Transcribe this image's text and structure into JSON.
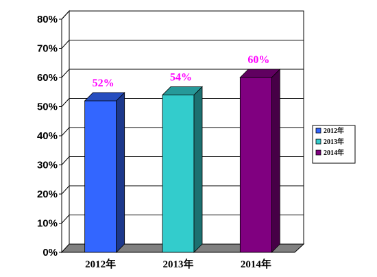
{
  "chart_data": {
    "type": "bar",
    "categories": [
      "2012年",
      "2013年",
      "2014年"
    ],
    "values": [
      52,
      54,
      60
    ],
    "data_labels": [
      "52%",
      "54%",
      "60%"
    ],
    "yticks": [
      "0%",
      "10%",
      "20%",
      "30%",
      "40%",
      "50%",
      "60%",
      "70%",
      "80%"
    ],
    "ylim": [
      0,
      80
    ],
    "grid": true,
    "three_d": true,
    "legend_position": "right",
    "legend": [
      {
        "name": "2012年",
        "color": "#3366ff"
      },
      {
        "name": "2013年",
        "color": "#33cccc"
      },
      {
        "name": "2014年",
        "color": "#800080"
      }
    ],
    "bar_colors": [
      "#3366ff",
      "#33cccc",
      "#800080"
    ],
    "data_label_color": "#ff00ff",
    "title": "",
    "xlabel": "",
    "ylabel": ""
  }
}
